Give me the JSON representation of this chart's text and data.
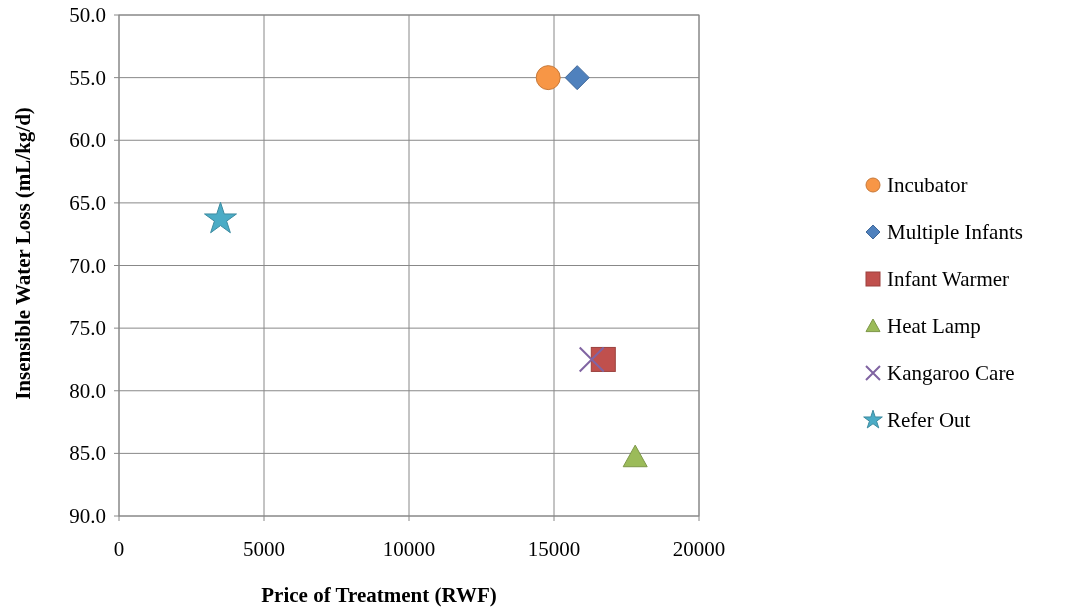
{
  "chart_data": {
    "type": "scatter",
    "xlabel": "Price of Treatment (RWF)",
    "ylabel": "Insensible Water Loss (mL/kg/d)",
    "xlim": [
      0,
      20000
    ],
    "xticks": [
      0,
      5000,
      10000,
      15000,
      20000
    ],
    "ylim": [
      90,
      50
    ],
    "yticks": [
      {
        "value": 50,
        "label": "50.0"
      },
      {
        "value": 55,
        "label": "55.0"
      },
      {
        "value": 60,
        "label": "60.0"
      },
      {
        "value": 65,
        "label": "65.0"
      },
      {
        "value": 70,
        "label": "70.0"
      },
      {
        "value": 75,
        "label": "75.0"
      },
      {
        "value": 80,
        "label": "80.0"
      },
      {
        "value": 85,
        "label": "85.0"
      },
      {
        "value": 90,
        "label": "90.0"
      }
    ],
    "grid": true,
    "legend": "right",
    "series": [
      {
        "name": "Incubator",
        "color": "#f79646",
        "marker": "circle",
        "x": [
          14800
        ],
        "values": [
          55
        ]
      },
      {
        "name": "Multiple Infants",
        "color": "#4f81bd",
        "marker": "diamond",
        "x": [
          15800
        ],
        "values": [
          55
        ]
      },
      {
        "name": "Infant Warmer",
        "color": "#c0504d",
        "marker": "square",
        "x": [
          16700
        ],
        "values": [
          77.5
        ]
      },
      {
        "name": "Heat Lamp",
        "color": "#9bbb59",
        "marker": "triangle",
        "x": [
          17800
        ],
        "values": [
          85.3
        ]
      },
      {
        "name": "Kangaroo Care",
        "color": "#8064a2",
        "marker": "cross",
        "x": [
          16300
        ],
        "values": [
          77.5
        ]
      },
      {
        "name": "Refer Out",
        "color": "#4bacc6",
        "marker": "star",
        "x": [
          3500
        ],
        "values": [
          66.3
        ]
      }
    ]
  }
}
